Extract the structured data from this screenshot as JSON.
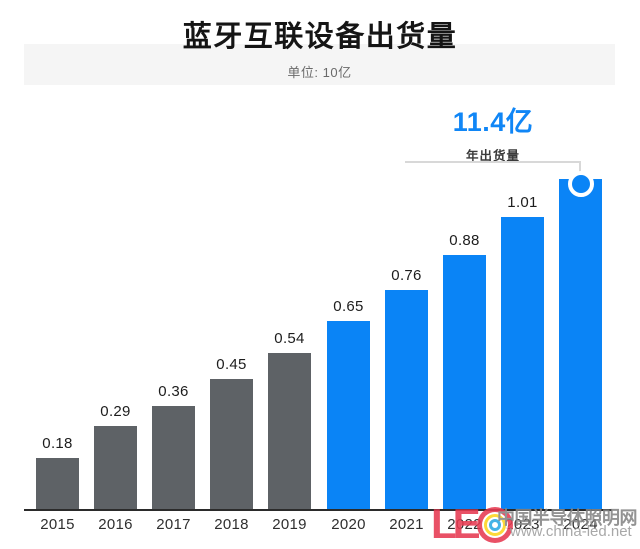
{
  "header": {
    "title": "蓝牙互联设备出货量",
    "subtitle": "单位: 10亿"
  },
  "annotation": {
    "value": "11.4亿",
    "label": "年出货量"
  },
  "watermark": {
    "logo_letters": "LE",
    "site_name": "中国半导体照明网",
    "site_url": "www.china-led.net"
  },
  "colors": {
    "bar_blue": "#0a84f6",
    "bar_gray": "#5e6266",
    "annotation_blue": "#1086f6",
    "band_bg": "#f5f5f5",
    "baseline": "#2b2b2b",
    "callout_line": "#d8d8d8",
    "marker_fill": "#0a84f6",
    "marker_ring": "#ffffff",
    "watermark_red": "#e73a51",
    "watermark_yellow": "#fdd41e",
    "watermark_blue": "#2ba9e3",
    "watermark_gray": "#858585"
  },
  "chart_data": {
    "type": "bar",
    "title": "蓝牙互联设备出货量",
    "subtitle_unit": "单位: 10亿",
    "xlabel": "",
    "ylabel": "",
    "ylim": [
      0,
      1.25
    ],
    "grid": false,
    "legend": false,
    "categories": [
      "2015",
      "2016",
      "2017",
      "2018",
      "2019",
      "2020",
      "2021",
      "2022",
      "2023",
      "2024"
    ],
    "values": [
      0.18,
      0.29,
      0.36,
      0.45,
      0.54,
      0.65,
      0.76,
      0.88,
      1.01,
      1.14
    ],
    "value_labels": [
      "0.18",
      "0.29",
      "0.36",
      "0.45",
      "0.54",
      "0.65",
      "0.76",
      "0.88",
      "1.01",
      ""
    ],
    "bar_colors": [
      "gray",
      "gray",
      "gray",
      "gray",
      "gray",
      "blue",
      "blue",
      "blue",
      "blue",
      "blue"
    ],
    "highlight": {
      "target_category": "2024",
      "annotation_value": "11.4亿",
      "annotation_label": "年出货量",
      "marker": "circle"
    }
  }
}
